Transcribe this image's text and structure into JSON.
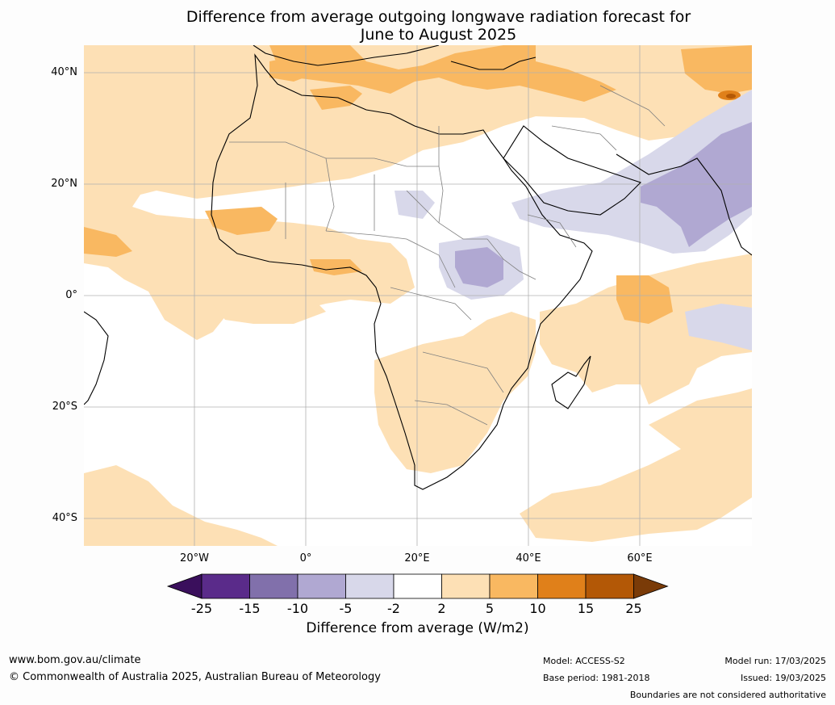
{
  "title": "Difference from average outgoing longwave radiation forecast for\nJune to August 2025",
  "title_lines": [
    "Difference from average outgoing longwave radiation forecast for",
    "June to August 2025"
  ],
  "map": {
    "region": "Africa, Middle East and Indian Ocean",
    "y_axis_labels": [
      "40°N",
      "20°N",
      "0°",
      "20°S",
      "40°S"
    ],
    "x_axis_labels": [
      "20°W",
      "0°",
      "20°E",
      "40°E",
      "60°E"
    ]
  },
  "legend": {
    "title": "Difference from average (W/m2)",
    "tick_labels": [
      "-25",
      "-15",
      "-10",
      "-5",
      "-2",
      "2",
      "5",
      "10",
      "15",
      "25"
    ],
    "colors": [
      "#3a0f5c",
      "#5a2b8a",
      "#8170ab",
      "#b0a8d2",
      "#d8d8ea",
      "#ffffff",
      "#fde0b5",
      "#f9b861",
      "#e0801a",
      "#b35806",
      "#7a3b08"
    ]
  },
  "footer": {
    "website": "www.bom.gov.au/climate",
    "copyright": "© Commonwealth of Australia 2025, Australian Bureau of Meteorology",
    "model": "Model: ACCESS-S2",
    "base_period": "Base period: 1981-2018",
    "model_run": "Model run: 17/03/2025",
    "issued": "Issued: 19/03/2025",
    "disclaimer": "Boundaries are not considered authoritative"
  }
}
